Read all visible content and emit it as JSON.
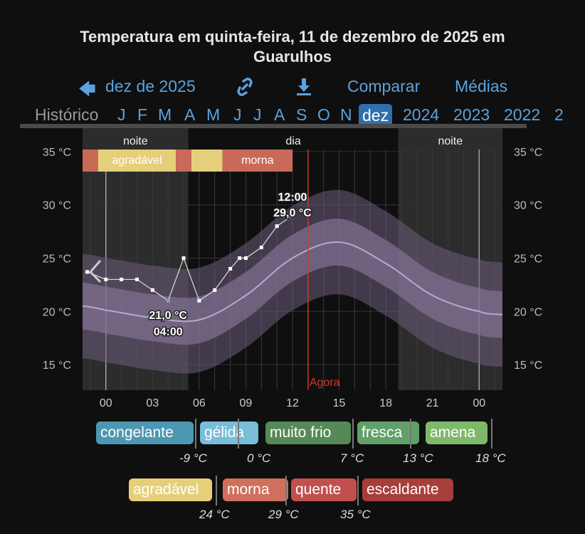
{
  "title": "Temperatura em quinta-feira, 11 de dezembro de 2025 em Guarulhos",
  "title_line1": "Temperatura em quinta-feira, 11 de dezembro de 2025 em",
  "title_line2": "Guarulhos",
  "nav": {
    "back_label": "dez de 2025",
    "back_icon": "arrow-left-icon",
    "link_icon": "link-icon",
    "download_icon": "download-icon",
    "compare": "Comparar",
    "averages": "Médias"
  },
  "months": {
    "history": "Histórico",
    "items": [
      "J",
      "F",
      "M",
      "A",
      "M",
      "J",
      "J",
      "A",
      "S",
      "O",
      "N"
    ],
    "selected": "dez",
    "years": [
      "2024",
      "2023",
      "2022",
      "2"
    ]
  },
  "colors": {
    "accent": "#5aa2de",
    "selected": "#2f6fae",
    "now_line": "#d0382f",
    "morna": "#c96a58",
    "agradavel": "#e6cf7a"
  },
  "chart_data": {
    "type": "line",
    "title": "",
    "y_ticks": [
      "35 °C",
      "30 °C",
      "25 °C",
      "20 °C",
      "15 °C"
    ],
    "y_tick_values": [
      35,
      30,
      25,
      20,
      15
    ],
    "x_ticks": [
      "00",
      "03",
      "06",
      "09",
      "12",
      "15",
      "18",
      "21",
      "00"
    ],
    "x_tick_hours": [
      0,
      3,
      6,
      9,
      12,
      15,
      18,
      21,
      24
    ],
    "xlim": [
      -1.5,
      25.5
    ],
    "ylim": [
      12.6,
      37.2
    ],
    "periods": [
      {
        "label": "noite",
        "from": -1.5,
        "to": 5.3,
        "shaded": true
      },
      {
        "label": "dia",
        "from": 5.3,
        "to": 18.8,
        "shaded": false
      },
      {
        "label": "noite",
        "from": 18.8,
        "to": 25.5,
        "shaded": true
      }
    ],
    "comfort_band": [
      {
        "from": -1.5,
        "to": -0.5,
        "class": "morna",
        "label": ""
      },
      {
        "from": -0.5,
        "to": 4.5,
        "class": "agradavel",
        "label": "agradável"
      },
      {
        "from": 4.5,
        "to": 5.5,
        "class": "morna",
        "label": ""
      },
      {
        "from": 5.5,
        "to": 7.5,
        "class": "agradavel",
        "label": ""
      },
      {
        "from": 7.5,
        "to": 12,
        "class": "morna",
        "label": "morna"
      }
    ],
    "observations": {
      "hours": [
        -1.2,
        0,
        1,
        2,
        3,
        4,
        5,
        6,
        7,
        8,
        8.6,
        9,
        10,
        11,
        12
      ],
      "values": [
        23.7,
        23,
        23,
        23,
        22,
        21,
        25,
        21,
        22,
        24,
        25,
        25,
        26,
        28,
        29
      ]
    },
    "min_label": {
      "temp": "21,0 °C",
      "time": "04:00",
      "hour": 4,
      "value": 21
    },
    "max_label": {
      "time": "12:00",
      "temp": "29,0 °C",
      "hour": 12,
      "value": 29
    },
    "normals": {
      "hours": [
        -1.5,
        0,
        3,
        6,
        9,
        12,
        15,
        18,
        21,
        24,
        25.5
      ],
      "mean": [
        20.5,
        20.1,
        19.4,
        19.2,
        21.5,
        25,
        26.5,
        24.5,
        21.5,
        20,
        19.7
      ],
      "inner_halfwidth": 2.2,
      "outer_halfwidth": 4.9
    },
    "now": {
      "label": "Agora",
      "hour": 13
    }
  },
  "legend": {
    "row1": [
      {
        "label": "congelante",
        "color": "#4e97b3"
      },
      {
        "label": "gélida",
        "color": "#79bdd8"
      },
      {
        "label": "muito frio",
        "color": "#558a57"
      },
      {
        "label": "fresca",
        "color": "#62a06a"
      },
      {
        "label": "amena",
        "color": "#7eb96a"
      }
    ],
    "row1_values": [
      "-9 °C",
      "0 °C",
      "7 °C",
      "13 °C",
      "18 °C"
    ],
    "row2": [
      {
        "label": "agradável",
        "color": "#e6cf7a"
      },
      {
        "label": "morna",
        "color": "#cf6f5d"
      },
      {
        "label": "quente",
        "color": "#c0504e"
      },
      {
        "label": "escaldante",
        "color": "#a83e3c"
      }
    ],
    "row2_values": [
      "24 °C",
      "29 °C",
      "35 °C"
    ]
  }
}
